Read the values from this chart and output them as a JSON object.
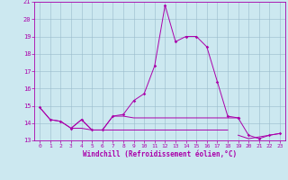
{
  "x": [
    0,
    1,
    2,
    3,
    4,
    5,
    6,
    7,
    8,
    9,
    10,
    11,
    12,
    13,
    14,
    15,
    16,
    17,
    18,
    19,
    20,
    21,
    22,
    23
  ],
  "line_main": [
    14.9,
    14.2,
    14.1,
    13.7,
    14.2,
    13.6,
    13.6,
    14.4,
    14.5,
    15.3,
    15.7,
    17.3,
    20.8,
    18.7,
    19.0,
    19.0,
    18.4,
    16.4,
    14.4,
    14.3,
    null,
    null,
    null,
    null
  ],
  "line_flat1": [
    14.9,
    14.2,
    14.1,
    13.7,
    14.2,
    13.6,
    13.6,
    14.4,
    14.4,
    14.3,
    14.3,
    14.3,
    14.3,
    14.3,
    14.3,
    14.3,
    14.3,
    14.3,
    14.3,
    14.3,
    null,
    null,
    null,
    null
  ],
  "line_flat2": [
    null,
    null,
    null,
    13.7,
    13.7,
    13.6,
    13.6,
    13.6,
    13.6,
    13.6,
    13.6,
    13.6,
    13.6,
    13.6,
    13.6,
    13.6,
    13.6,
    13.6,
    13.6,
    null,
    null,
    null,
    null,
    null
  ],
  "line_end": [
    null,
    null,
    null,
    null,
    null,
    null,
    null,
    null,
    null,
    null,
    null,
    null,
    null,
    null,
    null,
    null,
    null,
    null,
    null,
    14.3,
    13.3,
    13.1,
    13.3,
    13.4
  ],
  "line_end2": [
    null,
    null,
    null,
    null,
    null,
    null,
    null,
    null,
    null,
    null,
    null,
    null,
    null,
    null,
    null,
    null,
    null,
    null,
    null,
    13.3,
    13.1,
    13.2,
    13.3,
    13.4
  ],
  "xlabel": "Windchill (Refroidissement éolien,°C)",
  "ylim": [
    13,
    21
  ],
  "xlim": [
    -0.5,
    23.5
  ],
  "yticks": [
    13,
    14,
    15,
    16,
    17,
    18,
    19,
    20,
    21
  ],
  "xticks": [
    0,
    1,
    2,
    3,
    4,
    5,
    6,
    7,
    8,
    9,
    10,
    11,
    12,
    13,
    14,
    15,
    16,
    17,
    18,
    19,
    20,
    21,
    22,
    23
  ],
  "line_color": "#aa00aa",
  "bg_color": "#cce8f0",
  "grid_color": "#99bbcc",
  "tick_fontsize": 5,
  "xlabel_fontsize": 5.5
}
